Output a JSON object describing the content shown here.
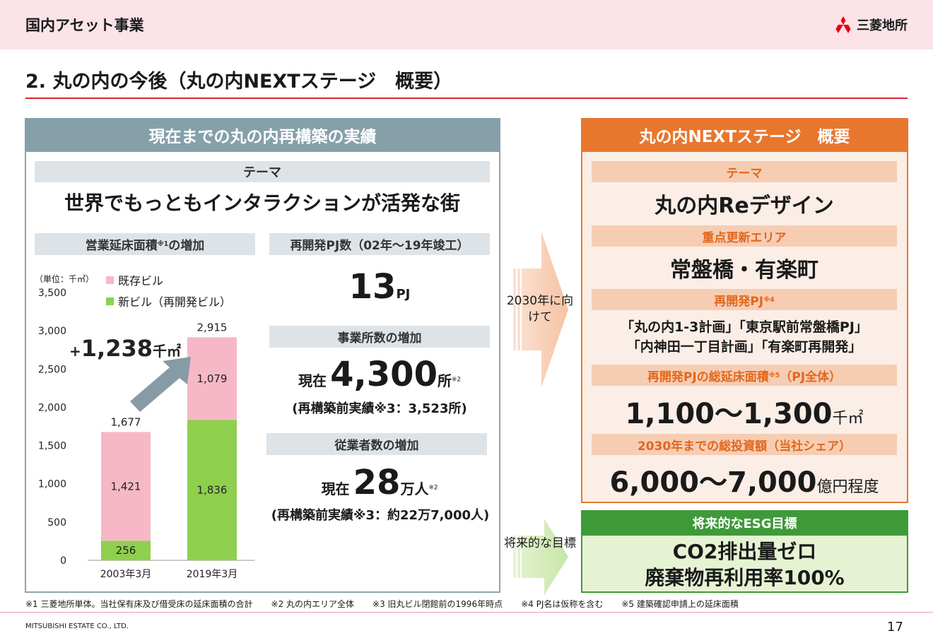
{
  "header": {
    "section": "国内アセット事業",
    "logo_text": "三菱地所"
  },
  "page_title": "2. 丸の内の今後（丸の内NEXTステージ　概要）",
  "left": {
    "title": "現在までの丸の内再構築の実績",
    "theme_label": "テーマ",
    "theme_text": "世界でもっともインタラクションが活発な街",
    "floor_label": "営業延床面積",
    "floor_label_sup": "※1",
    "floor_label_suffix": "の増加",
    "pj_label": "再開発PJ数（02年～19年竣工）",
    "pj_count": "13",
    "pj_unit": "PJ",
    "office_label": "事業所数の増加",
    "office_prefix": "現在",
    "office_count": "4,300",
    "office_unit": "所",
    "office_sup": "※2",
    "office_prev": "(再構築前実績※3：3,523所)",
    "emp_label": "従業者数の増加",
    "emp_prefix": "現在",
    "emp_count": "28",
    "emp_unit": "万人",
    "emp_sup": "※2",
    "emp_prev": "(再構築前実績※3：約22万7,000人)"
  },
  "chart_data": {
    "type": "bar",
    "stacked": true,
    "unit_label": "（単位：千㎡）",
    "categories": [
      "2003年3月",
      "2019年3月"
    ],
    "series": [
      {
        "name": "新ビル（再開発ビル）",
        "values": [
          256,
          1836
        ],
        "color": "#8fcf4e"
      },
      {
        "name": "既存ビル",
        "values": [
          1421,
          1079
        ],
        "color": "#f6b8c6"
      }
    ],
    "totals": [
      "1,677",
      "2,915"
    ],
    "ylim": [
      0,
      3500
    ],
    "yticks": [
      "0",
      "500",
      "1,000",
      "1,500",
      "2,000",
      "2,500",
      "3,000",
      "3,500"
    ],
    "annotation": "+1,238千㎡",
    "annotation_plus": "+",
    "annotation_value": "1,238",
    "annotation_unit": "千㎡"
  },
  "arrows": {
    "top_text": "2030年に向けて",
    "bottom_text": "将来的な目標"
  },
  "right": {
    "title": "丸の内NEXTステージ　概要",
    "theme_label": "テーマ",
    "theme_text": "丸の内Reデザイン",
    "area_label": "重点更新エリア",
    "area_text": "常盤橋・有楽町",
    "pj_label": "再開発PJ",
    "pj_sup": "※4",
    "pj_line1": "「丸の内1-3計画」「東京駅前常盤橋PJ」",
    "pj_line2": "「内神田一丁目計画」「有楽町再開発」",
    "floor_label": "再開発PJの総延床面積",
    "floor_sup": "※5",
    "floor_suffix": "（PJ全体）",
    "floor_value": "1,100～1,300",
    "floor_unit": "千㎡",
    "inv_label": "2030年までの総投資額（当社シェア）",
    "inv_value": "6,000～7,000",
    "inv_unit": "億円程度"
  },
  "esg": {
    "title": "将来的なESG目標",
    "line1": "CO2排出量ゼロ",
    "line2": "廃棄物再利用率100%"
  },
  "footnotes": [
    "※1 三菱地所単体。当社保有床及び借受床の延床面積の合計",
    "※2 丸の内エリア全体",
    "※3 旧丸ビル閉館前の1996年時点",
    "※4 PJ名は仮称を含む",
    "※5 建築確認申請上の延床面積"
  ],
  "footer": {
    "company": "MITSUBISHI ESTATE CO., LTD.",
    "page": "17"
  },
  "colors": {
    "accent_red": "#d9262f",
    "orange": "#e8772e",
    "green": "#3e9a39",
    "gray_blue": "#86a0aa"
  }
}
